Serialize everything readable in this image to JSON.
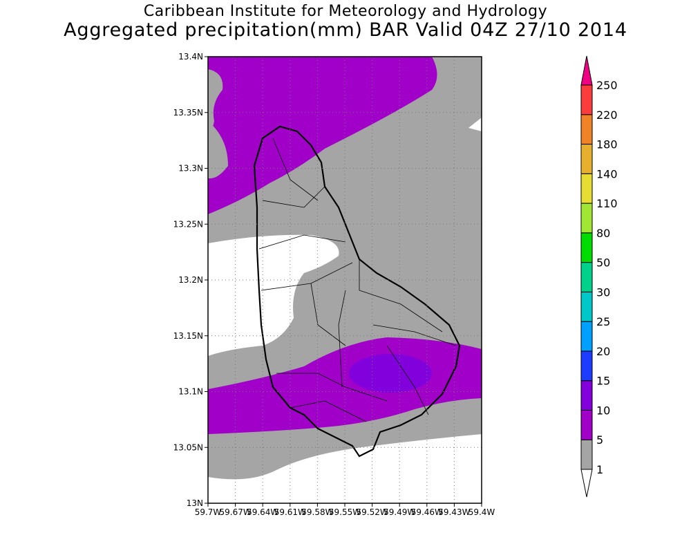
{
  "header": {
    "title": "Caribbean Institute for Meteorology and Hydrology",
    "subtitle": "Aggregated precipitation(mm) BAR Valid 04Z 27/10 2014"
  },
  "chart_data": {
    "type": "heatmap",
    "title": "Aggregated precipitation(mm) BAR Valid 04Z 27/10 2014",
    "region": "Barbados",
    "xlim": [
      -59.7,
      -59.4
    ],
    "ylim": [
      13.0,
      13.4
    ],
    "grid": true,
    "x_ticks": [
      "59.7W",
      "59.67W",
      "59.64W",
      "59.61W",
      "59.58W",
      "59.55W",
      "59.52W",
      "59.49W",
      "59.46W",
      "59.43W",
      "59.4W"
    ],
    "y_ticks": [
      "13N",
      "13.05N",
      "13.1N",
      "13.15N",
      "13.2N",
      "13.25N",
      "13.3N",
      "13.35N",
      "13.4N"
    ],
    "colorbar": {
      "placement": "right",
      "levels": [
        "1",
        "5",
        "10",
        "15",
        "20",
        "25",
        "30",
        "50",
        "80",
        "110",
        "140",
        "180",
        "220",
        "250"
      ],
      "colors": [
        "#a5a5a5",
        "#a000c8",
        "#8200dc",
        "#1e3cff",
        "#00a0ff",
        "#00c8c8",
        "#00d28c",
        "#00dc00",
        "#a0e632",
        "#e6dc32",
        "#e6af2d",
        "#f08228",
        "#fa3c3c",
        "#f00082"
      ],
      "below_color": "#ffffff"
    },
    "field_summary": [
      {
        "range": "<1",
        "color": "#ffffff"
      },
      {
        "range": "1-5",
        "color": "#a5a5a5"
      },
      {
        "range": "5-10",
        "color": "#a000c8"
      },
      {
        "range": "10-15",
        "color": "#8200dc"
      }
    ]
  }
}
